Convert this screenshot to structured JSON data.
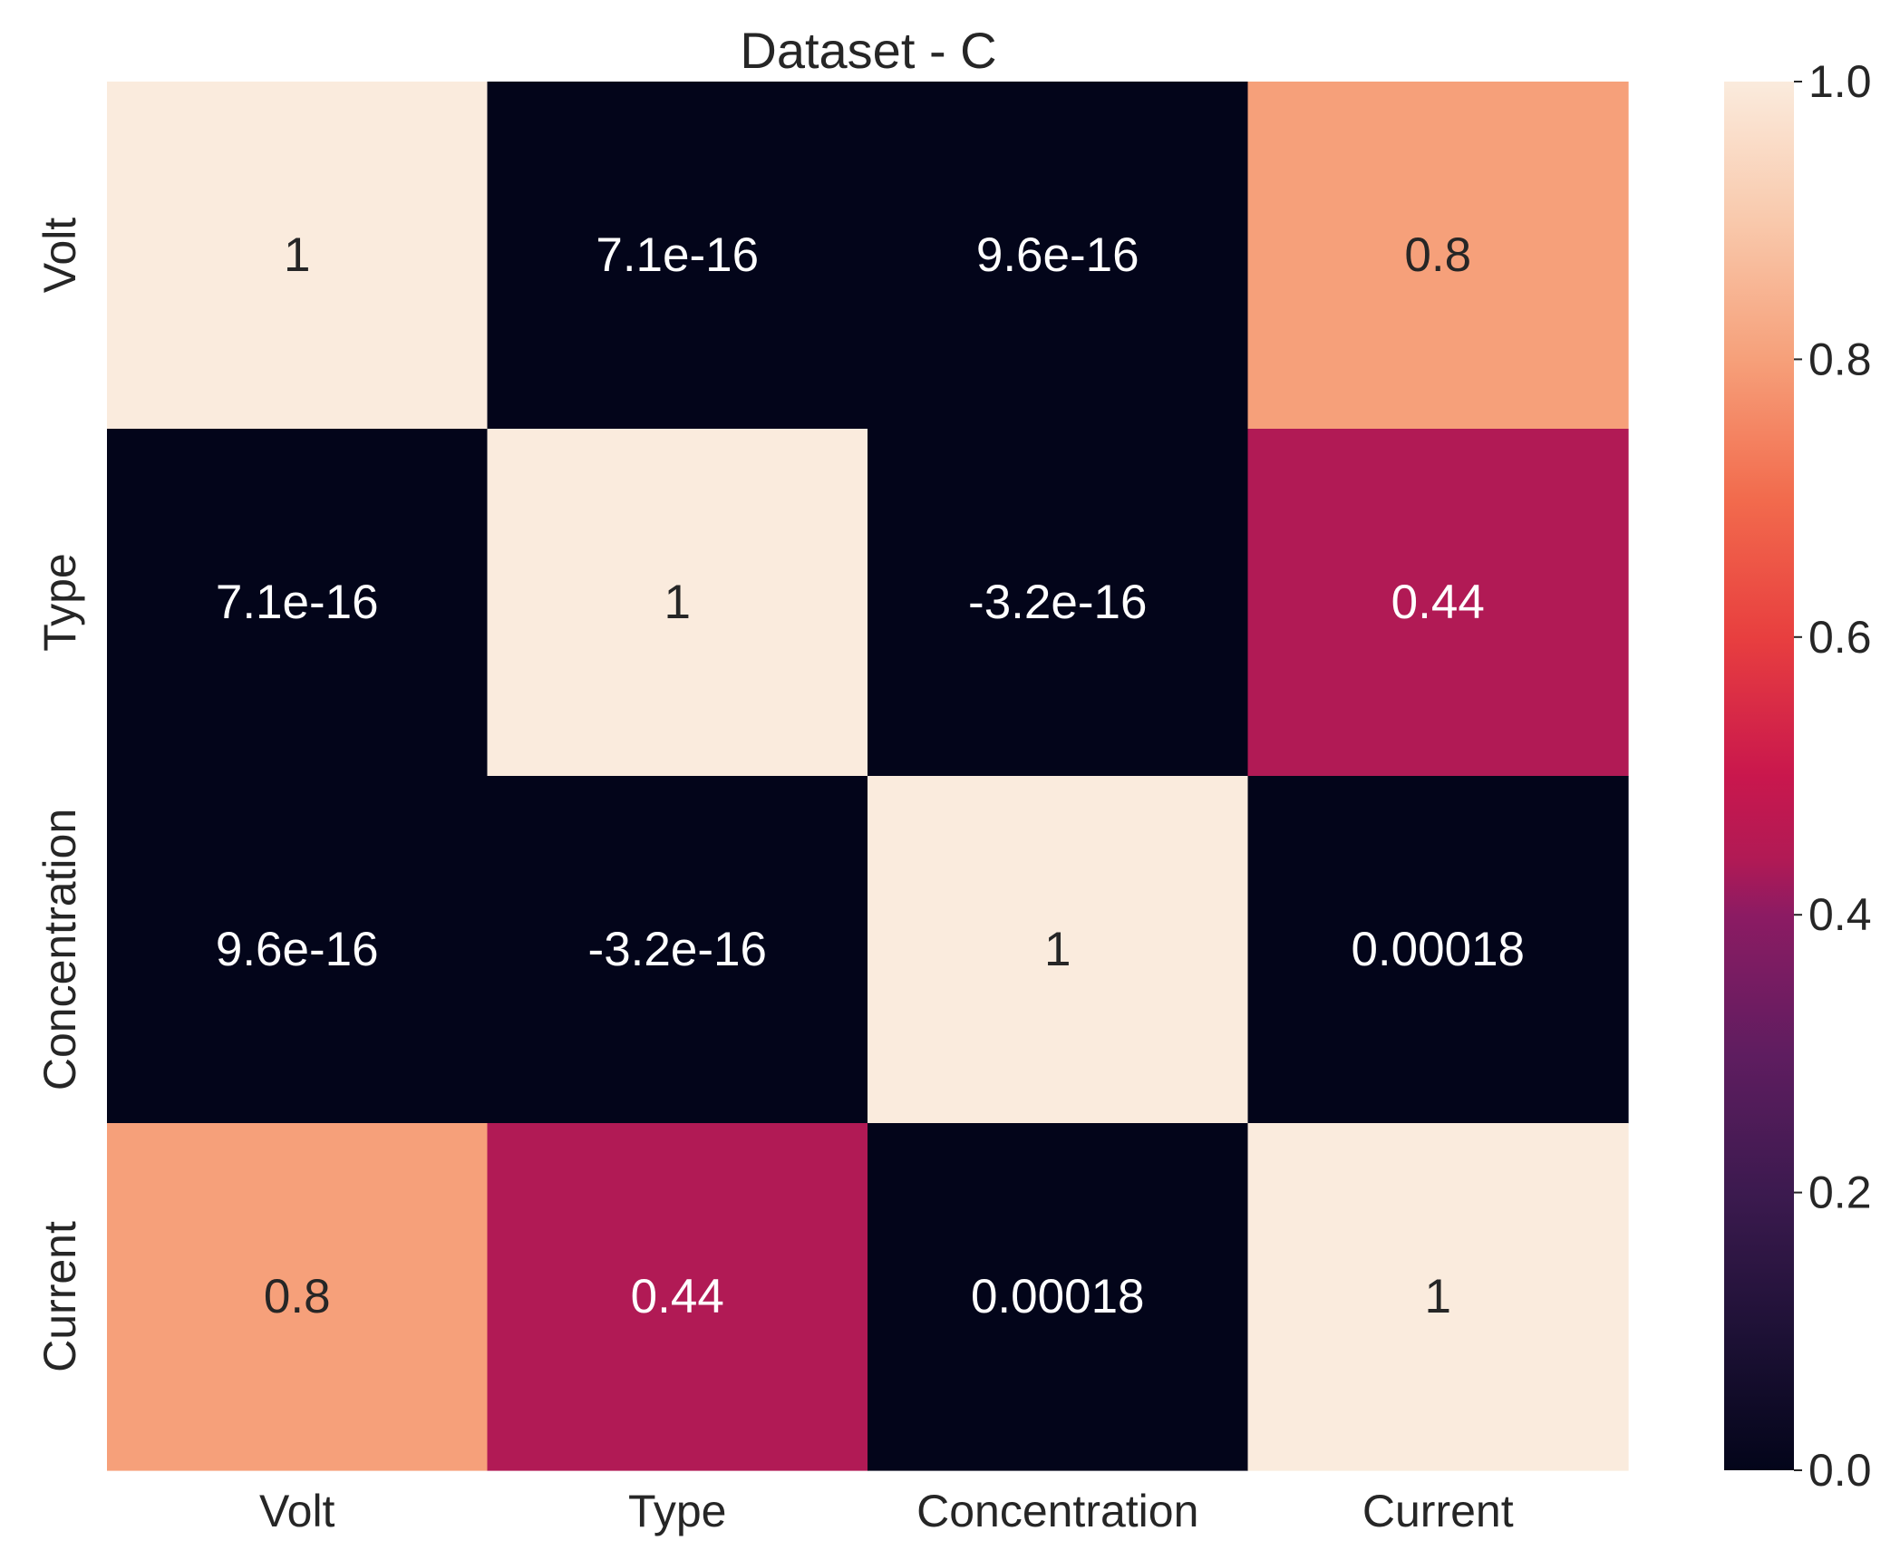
{
  "chart_data": {
    "type": "heatmap",
    "title": "Dataset - C",
    "x_categories": [
      "Volt",
      "Type",
      "Concentration",
      "Current"
    ],
    "y_categories": [
      "Volt",
      "Type",
      "Concentration",
      "Current"
    ],
    "values": [
      [
        1,
        7.1e-16,
        9.6e-16,
        0.8
      ],
      [
        7.1e-16,
        1,
        -3.2e-16,
        0.44
      ],
      [
        9.6e-16,
        -3.2e-16,
        1,
        0.00018
      ],
      [
        0.8,
        0.44,
        0.00018,
        1
      ]
    ],
    "annotations": [
      [
        "1",
        "7.1e-16",
        "9.6e-16",
        "0.8"
      ],
      [
        "7.1e-16",
        "1",
        "-3.2e-16",
        "0.44"
      ],
      [
        "9.6e-16",
        "-3.2e-16",
        "1",
        "0.00018"
      ],
      [
        "0.8",
        "0.44",
        "0.00018",
        "1"
      ]
    ],
    "colorbar": {
      "vmin": 0.0,
      "vmax": 1.0,
      "ticks": [
        0.0,
        0.2,
        0.4,
        0.6,
        0.8,
        1.0
      ],
      "tick_labels": [
        "0.0",
        "0.2",
        "0.4",
        "0.6",
        "0.8",
        "1.0"
      ],
      "colormap_stops": [
        {
          "v": 0.0,
          "color": "#03051a"
        },
        {
          "v": 0.1,
          "color": "#1e1136"
        },
        {
          "v": 0.2,
          "color": "#3c1a4f"
        },
        {
          "v": 0.3,
          "color": "#5f1d60"
        },
        {
          "v": 0.4,
          "color": "#8c1b63"
        },
        {
          "v": 0.44,
          "color": "#b11a55"
        },
        {
          "v": 0.5,
          "color": "#c9174d"
        },
        {
          "v": 0.6,
          "color": "#e83f3f"
        },
        {
          "v": 0.7,
          "color": "#f26b4d"
        },
        {
          "v": 0.8,
          "color": "#f6a07a"
        },
        {
          "v": 0.9,
          "color": "#f9c9ac"
        },
        {
          "v": 1.0,
          "color": "#faebdd"
        }
      ]
    },
    "text_colors": {
      "dark": "#262626",
      "light": "#ffffff"
    }
  }
}
